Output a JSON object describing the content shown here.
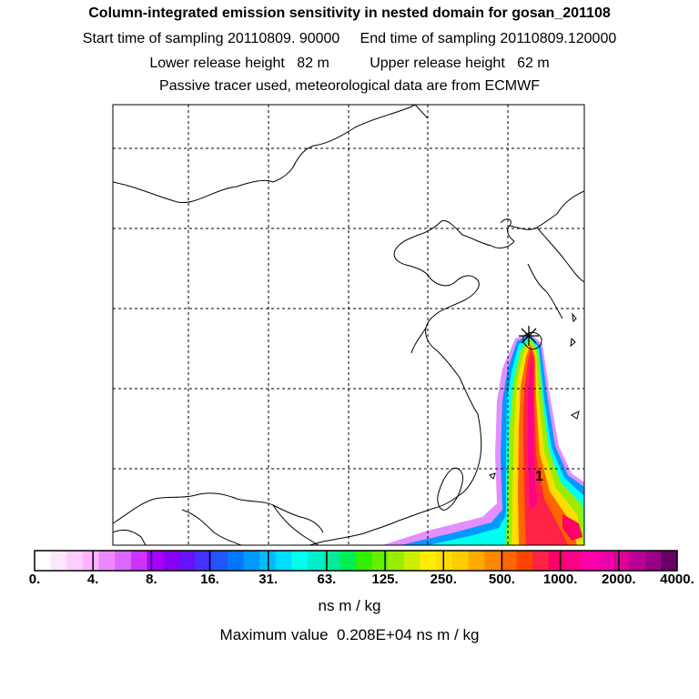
{
  "title": {
    "line1": "Column-integrated emission sensitivity in nested domain for gosan_201108",
    "line2": "Start time of sampling 20110809. 90000     End time of sampling 20110809.120000",
    "line3": "Lower release height   82 m          Upper release height   62 m",
    "line4": "Passive tracer used, meteorological data are from ECMWF"
  },
  "colorbar": {
    "tick_labels": [
      "0.",
      "4.",
      "8.",
      "16.",
      "31.",
      "63.",
      "125.",
      "250.",
      "500.",
      "1000.",
      "2000.",
      "4000."
    ],
    "colors": [
      "#ffffff",
      "#ffe6ff",
      "#ffccff",
      "#ffb3ff",
      "#ee88ff",
      "#dd66ff",
      "#cc33ff",
      "#aa00ff",
      "#8800ee",
      "#6611ff",
      "#4433ff",
      "#2255ff",
      "#0077ff",
      "#0099ff",
      "#00bbff",
      "#00ddff",
      "#00ffee",
      "#00eecc",
      "#00ee99",
      "#00ee55",
      "#33ee00",
      "#66ee00",
      "#99ee00",
      "#ccee00",
      "#ffee00",
      "#ffdd00",
      "#ffcc00",
      "#ffaa00",
      "#ff8800",
      "#ff6600",
      "#ff4400",
      "#ff2244",
      "#ff0066",
      "#ff0088",
      "#ff00aa",
      "#ee00aa",
      "#dd0099",
      "#bb0099",
      "#990088",
      "#660066"
    ],
    "units": "ns m / kg"
  },
  "max_value_text": "Maximum value  0.208E+04 ns m / kg",
  "receptor": {
    "marker": "asterisk",
    "label": "1"
  }
}
